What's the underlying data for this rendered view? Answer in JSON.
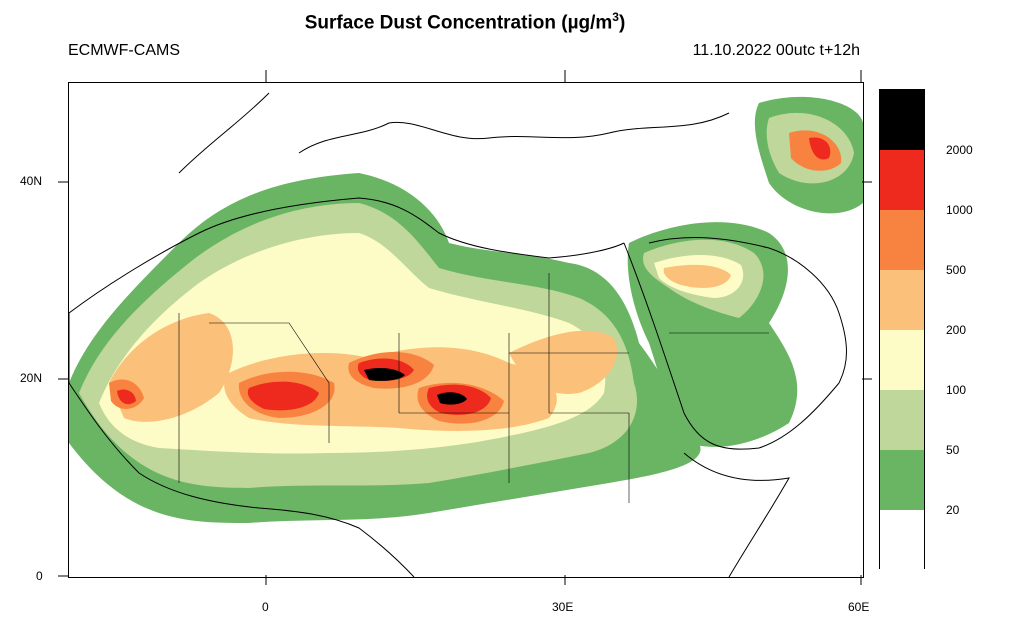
{
  "header": {
    "title_main": "Surface Dust Concentration (",
    "title_mu": "µg/m",
    "title_sup": "3",
    "title_end": ")",
    "source": "ECMWF-CAMS",
    "valid_time": "11.10.2022 00utc t+12h"
  },
  "axes": {
    "lat_ticks": [
      "40N",
      "20N",
      "0"
    ],
    "lon_ticks": [
      "0",
      "30E",
      "60E"
    ]
  },
  "legend": {
    "levels": [
      "2000",
      "1000",
      "500",
      "200",
      "100",
      "50",
      "20"
    ],
    "colors": [
      "#000000",
      "#ee2a1e",
      "#f88340",
      "#fbc07a",
      "#fefcc6",
      "#bfd79a",
      "#6ab564",
      "#ffffff"
    ]
  },
  "map": {
    "land_color": "#ffffff",
    "boundary_color": "#000000"
  }
}
